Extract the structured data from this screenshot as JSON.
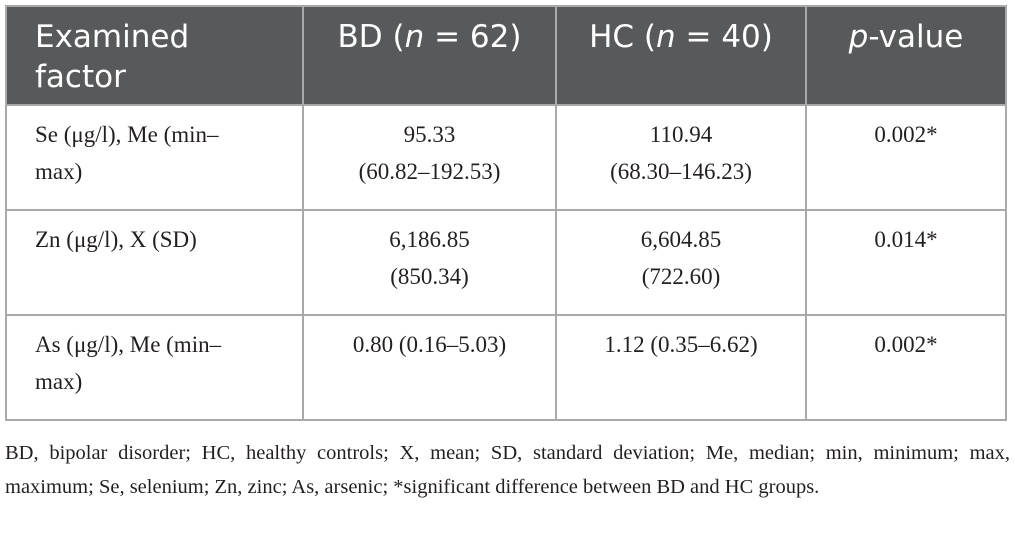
{
  "table": {
    "header": [
      [
        "Examined factor"
      ],
      [
        "BD (",
        "n",
        " = 62)"
      ],
      [
        "HC (",
        "n",
        " = 40)"
      ],
      [
        "p",
        "-value"
      ]
    ],
    "rows": [
      [
        "Se (μg/l), Me (min–max)",
        [
          "95.33",
          "(60.82–192.53)"
        ],
        [
          "110.94",
          "(68.30–146.23)"
        ],
        "0.002*"
      ],
      [
        "Zn (μg/l), X (SD)",
        [
          "6,186.85",
          "(850.34)"
        ],
        [
          "6,604.85",
          "(722.60)"
        ],
        "0.014*"
      ],
      [
        "As (μg/l), Me (min–max)",
        [
          "0.80 (0.16–5.03)"
        ],
        [
          "1.12 (0.35–6.62)"
        ],
        "0.002*"
      ]
    ]
  },
  "footnote": "BD, bipolar disorder; HC, healthy controls; X, mean; SD, standard deviation; Me, median; min, minimum; max, maximum; Se, selenium; Zn, zinc; As, arsenic; *significant difference between BD and HC groups."
}
